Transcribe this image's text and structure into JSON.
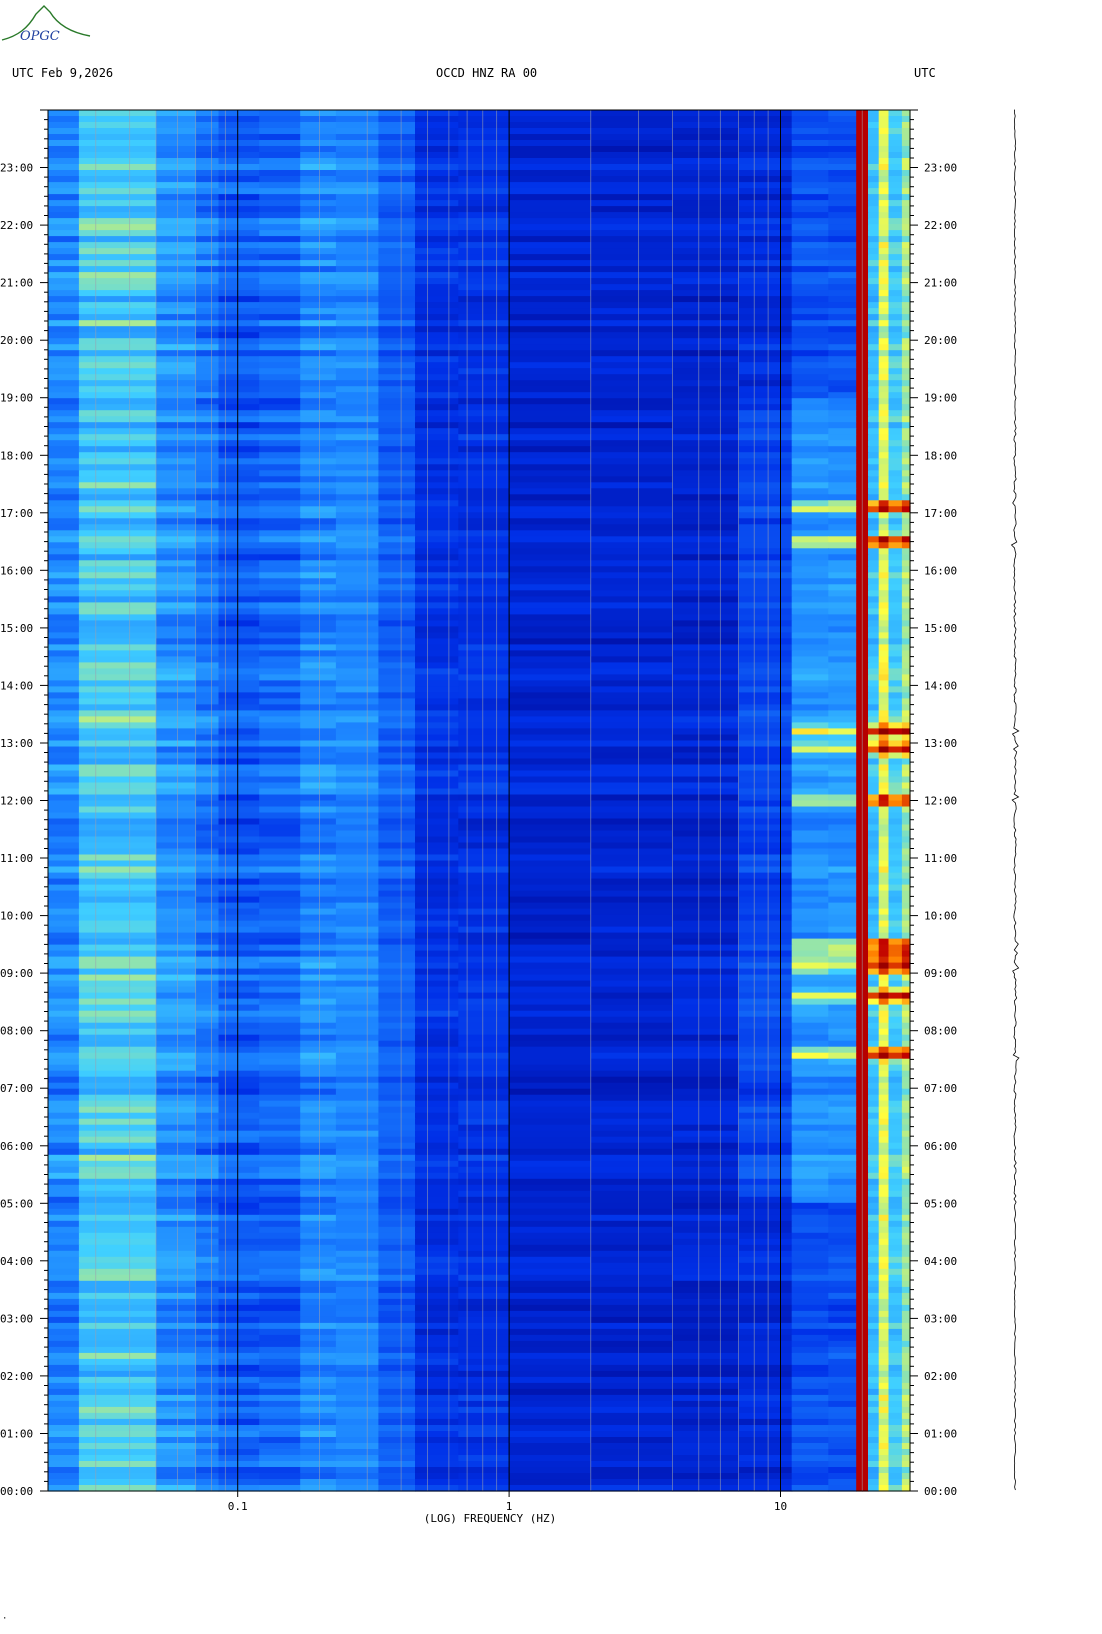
{
  "header": {
    "left": "UTC  Feb 9,2026",
    "center": "OCCD HNZ RA 00",
    "right": "UTC"
  },
  "logo": {
    "text": "OPGC",
    "icon": "volcano-logo-icon",
    "color": "#2a7a2a"
  },
  "corner_mark": "·",
  "chart_data": {
    "type": "heatmap",
    "title": "OCCD HNZ RA 00",
    "xlabel": "(LOG) FREQUENCY (HZ)",
    "ylabel": "",
    "x_scale": "log",
    "xlim": [
      0.02,
      30
    ],
    "ylim": [
      0,
      24
    ],
    "x_ticks": [
      {
        "value": 0.1,
        "label": "0.1"
      },
      {
        "value": 1,
        "label": "1"
      },
      {
        "value": 10,
        "label": "10"
      }
    ],
    "y_ticks": [
      {
        "value": 0,
        "label": "00:00"
      },
      {
        "value": 1,
        "label": "01:00"
      },
      {
        "value": 2,
        "label": "02:00"
      },
      {
        "value": 3,
        "label": "03:00"
      },
      {
        "value": 4,
        "label": "04:00"
      },
      {
        "value": 5,
        "label": "05:00"
      },
      {
        "value": 6,
        "label": "06:00"
      },
      {
        "value": 7,
        "label": "07:00"
      },
      {
        "value": 8,
        "label": "08:00"
      },
      {
        "value": 9,
        "label": "09:00"
      },
      {
        "value": 10,
        "label": "10:00"
      },
      {
        "value": 11,
        "label": "11:00"
      },
      {
        "value": 12,
        "label": "12:00"
      },
      {
        "value": 13,
        "label": "13:00"
      },
      {
        "value": 14,
        "label": "14:00"
      },
      {
        "value": 15,
        "label": "15:00"
      },
      {
        "value": 16,
        "label": "16:00"
      },
      {
        "value": 17,
        "label": "17:00"
      },
      {
        "value": 18,
        "label": "18:00"
      },
      {
        "value": 19,
        "label": "19:00"
      },
      {
        "value": 20,
        "label": "20:00"
      },
      {
        "value": 21,
        "label": "21:00"
      },
      {
        "value": 22,
        "label": "22:00"
      },
      {
        "value": 23,
        "label": "23:00"
      }
    ],
    "x_gridlines": [
      0.03,
      0.04,
      0.05,
      0.06,
      0.07,
      0.08,
      0.09,
      0.2,
      0.3,
      0.4,
      0.5,
      0.6,
      0.7,
      0.8,
      0.9,
      2,
      3,
      4,
      5,
      6,
      7,
      8,
      9,
      20
    ],
    "x_major_gridlines": [
      0.1,
      1,
      10
    ],
    "grid": true,
    "colormap": [
      "#000a9a",
      "#0030e8",
      "#1a80ff",
      "#40d0ff",
      "#ffff40",
      "#ff8000",
      "#c00000",
      "#800000"
    ],
    "background_color": "#0014b4",
    "event_hours": [
      8.6,
      9.1,
      9.3,
      9.5,
      12.0,
      12.9,
      13.2,
      16.5,
      17.1,
      7.6
    ]
  }
}
